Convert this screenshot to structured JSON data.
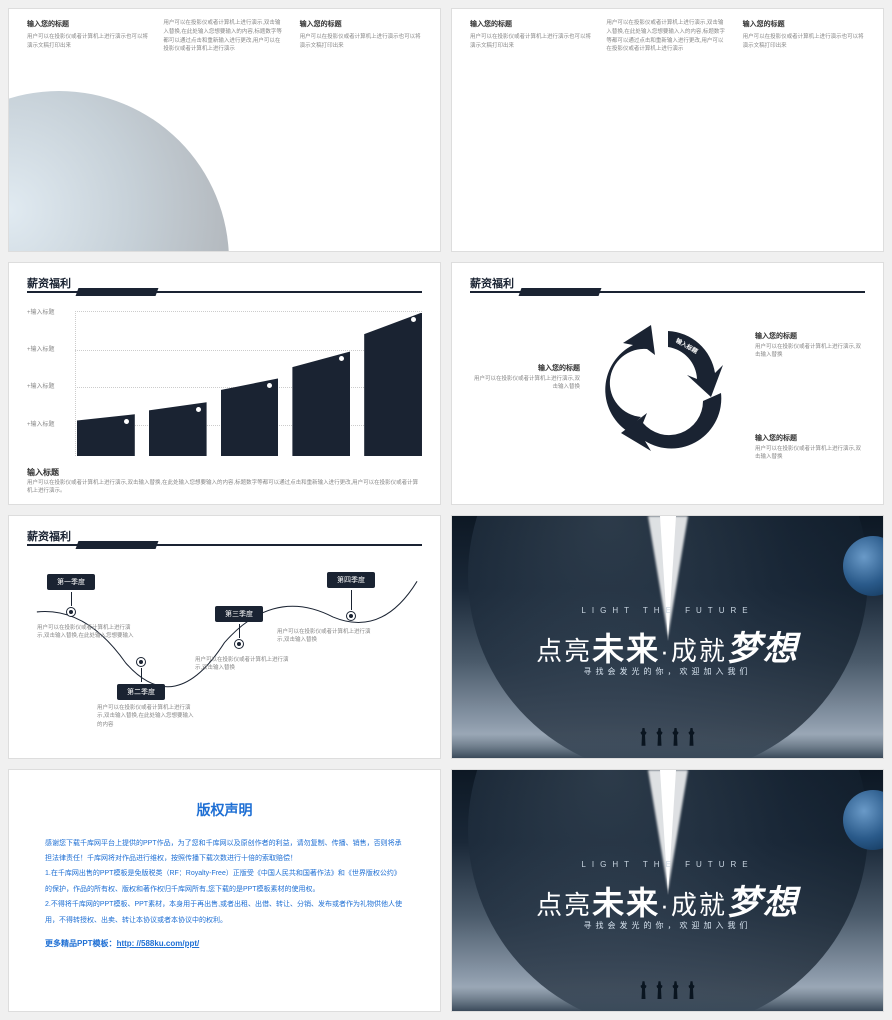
{
  "slide1": {
    "cols": [
      {
        "title": "输入您的标题",
        "text": "用户可以在投影仪或者计算机上进行演示也可以将演示文稿打印出来"
      },
      {
        "title": "",
        "text": "用户可以在投影仪或者计算机上进行演示,双击输入替换,在此处输入您想要输入的内容,标题数字等都可以通过点击和重新输入进行更改,用户可以在投影仪或者计算机上进行演示"
      },
      {
        "title": "输入您的标题",
        "text": "用户可以在投影仪或者计算机上进行演示也可以将演示文稿打印出来"
      }
    ]
  },
  "slide2": {
    "cols": [
      {
        "title": "输入您的标题",
        "text": "用户可以在投影仪或者计算机上进行演示也可以将演示文稿打印出来"
      },
      {
        "title": "",
        "text": "用户可以在投影仪或者计算机上进行演示,双击输入替换,在此处输入您想要输入入的内容,标题数字等都可以通过点击和重新输入进行更改,用户可以在投影仪或者计算机上进行演示"
      },
      {
        "title": "输入您的标题",
        "text": "用户可以在投影仪或者计算机上进行演示也可以将演示文稿打印出来"
      }
    ]
  },
  "slide3": {
    "title": "薪资福利",
    "ylabels": [
      "+输入标题",
      "+输入标题",
      "+输入标题",
      "+输入标题"
    ],
    "bars": [
      28,
      36,
      52,
      70,
      96
    ],
    "footer_title": "输入标题",
    "footer_text": "用户可以在投影仪或者计算机上进行演示,双击输入替换,在此处输入您想要输入的内容,标题数字等都可以通过点击和重新输入进行更改,用户可以在投影仪或者计算机上进行演示。",
    "bar_color": "#1a2332"
  },
  "slide4": {
    "title": "薪资福利",
    "arrow_labels": [
      "输入标题",
      "输入标题",
      "输入标题"
    ],
    "items": [
      {
        "title": "输入您的标题",
        "text": "用户可以在投影仪或者计算机上进行演示,双击输入替换"
      },
      {
        "title": "输入您的标题",
        "text": "用户可以在投影仪或者计算机上进行演示,双击输入替换"
      },
      {
        "title": "输入您的标题",
        "text": "用户可以在投影仪或者计算机上进行演示,双击输入替换"
      }
    ]
  },
  "slide5": {
    "title": "薪资福利",
    "nodes": [
      {
        "label": "第一季度",
        "text": "用户可以在投影仪或者计算机上进行演示,双击输入替换,在此处输入您想要输入"
      },
      {
        "label": "第二季度",
        "text": "用户可以在投影仪或者计算机上进行演示,双击输入替换,在此处输入您想要输入的内容"
      },
      {
        "label": "第三季度",
        "text": "用户可以在投影仪或者计算机上进行演示,双击输入替换"
      },
      {
        "label": "第四季度",
        "text": "用户可以在投影仪或者计算机上进行演示,双击输入替换"
      }
    ]
  },
  "hero": {
    "eng": "LIGHT THE FUTURE",
    "title_p1": "点亮",
    "title_big1": "未来",
    "title_mid": "·",
    "title_p2": "成就",
    "title_big2": "梦想",
    "sub": "寻找会发光的你，欢迎加入我们"
  },
  "slide7": {
    "title": "版权声明",
    "p1": "感谢您下载千库网平台上提供的PPT作品，为了您和千库网以及原创作者的利益，请勿复制、传播、销售，否则将承担法律责任！千库网将对作品进行维权，按照传播下载次数进行十倍的索取赔偿！",
    "p2": "1.在千库网出售的PPT模板是免版税类（RF：Royalty-Free）正版受《中国人民共和国著作法》和《世界版权公约》的保护，作品的所有权、版权和著作权归千库网所有,您下载的是PPT模板素材的使用权。",
    "p3": "2.不得将千库网的PPT模板、PPT素材，本身用于再出售,或者出租、出借、转让、分销、发布或者作为礼物供他人使用，不得转授权、出卖、转让本协议或者本协议中的权利。",
    "more_label": "更多精品PPT模板：",
    "more_url": "http: //588ku.com/ppt/"
  }
}
